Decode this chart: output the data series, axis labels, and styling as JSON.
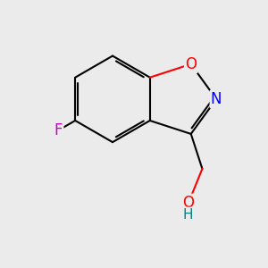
{
  "bg_color": "#ebebeb",
  "bond_color": "#000000",
  "bond_width": 1.5,
  "atom_colors": {
    "F": "#cc00cc",
    "N": "#0000ff",
    "O_ring": "#ff0000",
    "O_OH": "#ff0000",
    "H": "#008080",
    "C": "#000000"
  },
  "font_size": 12,
  "font_size_H": 11
}
